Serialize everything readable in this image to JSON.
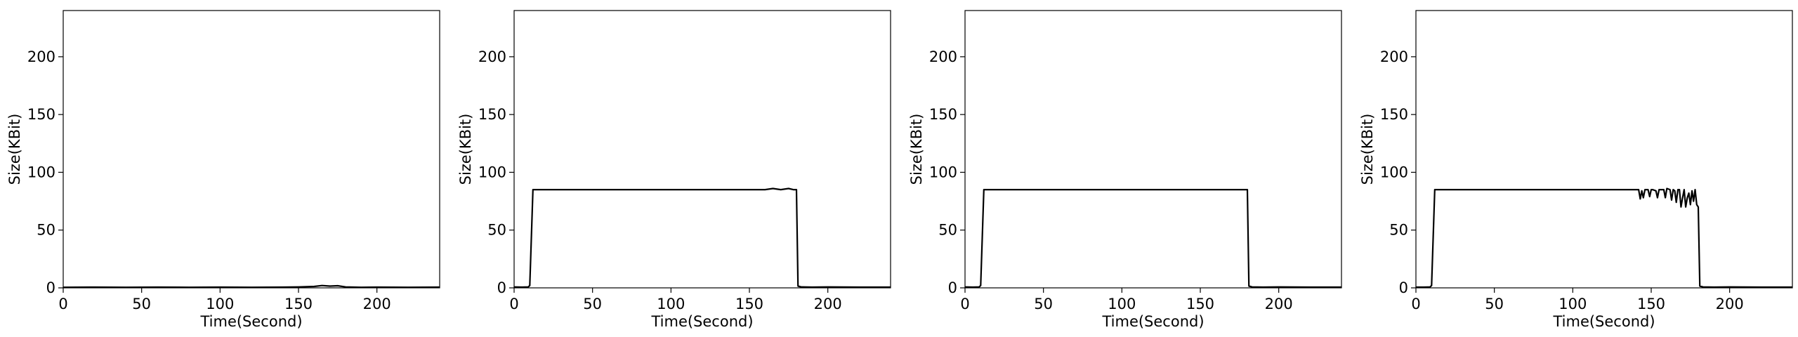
{
  "chart_data": [
    {
      "type": "line",
      "xlabel": "Time(Second)",
      "ylabel": "Size(KBit)",
      "xlim": [
        0,
        240
      ],
      "ylim": [
        0,
        240
      ],
      "xticks": [
        0,
        50,
        100,
        150,
        200
      ],
      "yticks": [
        0,
        50,
        100,
        150,
        200
      ],
      "grid": false,
      "series": [
        {
          "color": "#000000",
          "x": [
            0,
            20,
            40,
            60,
            80,
            100,
            120,
            140,
            150,
            160,
            165,
            170,
            175,
            180,
            190,
            200,
            220,
            240
          ],
          "y": [
            0.5,
            0.6,
            0.5,
            0.6,
            0.5,
            0.6,
            0.5,
            0.6,
            0.8,
            1.2,
            2.0,
            1.5,
            1.8,
            0.8,
            0.5,
            0.6,
            0.5,
            0.6
          ]
        }
      ]
    },
    {
      "type": "line",
      "xlabel": "Time(Second)",
      "ylabel": "Size(KBit)",
      "xlim": [
        0,
        240
      ],
      "ylim": [
        0,
        240
      ],
      "xticks": [
        0,
        50,
        100,
        150,
        200
      ],
      "yticks": [
        0,
        50,
        100,
        150,
        200
      ],
      "grid": false,
      "series": [
        {
          "color": "#000000",
          "x": [
            0,
            5,
            9,
            10,
            12,
            20,
            40,
            60,
            80,
            100,
            120,
            140,
            160,
            165,
            170,
            175,
            178,
            180,
            181,
            183,
            190,
            200,
            220,
            240
          ],
          "y": [
            0.8,
            0.6,
            0.8,
            2,
            85,
            85,
            85,
            85,
            85,
            85,
            85,
            85,
            85,
            86,
            85,
            86,
            85,
            85,
            1.5,
            0.8,
            0.6,
            0.8,
            0.6,
            0.6
          ]
        }
      ]
    },
    {
      "type": "line",
      "xlabel": "Time(Second)",
      "ylabel": "Size(KBit)",
      "xlim": [
        0,
        240
      ],
      "ylim": [
        0,
        240
      ],
      "xticks": [
        0,
        50,
        100,
        150,
        200
      ],
      "yticks": [
        0,
        50,
        100,
        150,
        200
      ],
      "grid": false,
      "series": [
        {
          "color": "#000000",
          "x": [
            0,
            5,
            9,
            10,
            12,
            20,
            40,
            60,
            80,
            100,
            120,
            140,
            160,
            170,
            175,
            180,
            181,
            183,
            190,
            200,
            220,
            240
          ],
          "y": [
            0.8,
            0.6,
            0.8,
            2,
            85,
            85,
            85,
            85,
            85,
            85,
            85,
            85,
            85,
            85,
            85,
            85,
            1.5,
            0.8,
            0.6,
            0.8,
            0.6,
            0.6
          ]
        }
      ]
    },
    {
      "type": "line",
      "xlabel": "Time(Second)",
      "ylabel": "Size(KBit)",
      "xlim": [
        0,
        240
      ],
      "ylim": [
        0,
        240
      ],
      "xticks": [
        0,
        50,
        100,
        150,
        200
      ],
      "yticks": [
        0,
        50,
        100,
        150,
        200
      ],
      "grid": false,
      "series": [
        {
          "color": "#000000",
          "x": [
            0,
            5,
            9,
            10,
            12,
            20,
            40,
            60,
            80,
            100,
            120,
            140,
            142,
            143,
            144,
            145,
            146,
            148,
            149,
            150,
            151,
            153,
            154,
            155,
            157,
            158,
            159,
            160,
            162,
            163,
            164,
            165,
            166,
            167,
            168,
            169,
            170,
            171,
            172,
            173,
            174,
            175,
            176,
            177,
            178,
            179,
            180,
            181,
            183,
            190,
            200,
            220,
            240
          ],
          "y": [
            0.6,
            0.6,
            0.8,
            2,
            85,
            85,
            85,
            85,
            85,
            85,
            85,
            85,
            85,
            77,
            84,
            78,
            85,
            85,
            79,
            85,
            85,
            84,
            78,
            85,
            85,
            85,
            78,
            86,
            85,
            76,
            85,
            84,
            74,
            85,
            85,
            70,
            78,
            85,
            70,
            78,
            82,
            72,
            84,
            75,
            85,
            72,
            70,
            1.5,
            0.8,
            0.6,
            0.8,
            0.6,
            0.6
          ]
        }
      ]
    }
  ]
}
